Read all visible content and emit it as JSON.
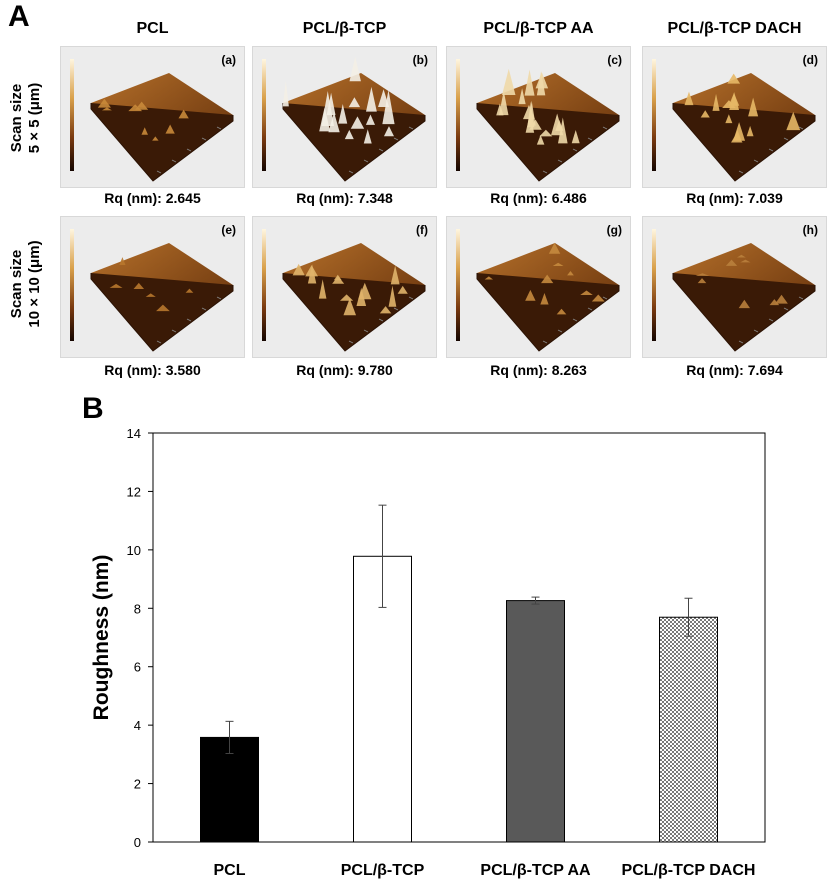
{
  "panel_a": {
    "letter": "A",
    "columns": [
      "PCL",
      "PCL/β-TCP",
      "PCL/β-TCP AA",
      "PCL/β-TCP DACH"
    ],
    "rows": [
      {
        "label_line1": "Scan size",
        "label_line2": "5 × 5 (μm)"
      },
      {
        "label_line1": "Scan size",
        "label_line2": "10 × 10 (μm)"
      }
    ],
    "tiles": [
      {
        "letter": "(a)",
        "rq": "Rq (nm): 2.645"
      },
      {
        "letter": "(b)",
        "rq": "Rq (nm): 7.348"
      },
      {
        "letter": "(c)",
        "rq": "Rq (nm): 6.486"
      },
      {
        "letter": "(d)",
        "rq": "Rq (nm): 7.039"
      },
      {
        "letter": "(e)",
        "rq": "Rq (nm): 3.580"
      },
      {
        "letter": "(f)",
        "rq": "Rq (nm): 9.780"
      },
      {
        "letter": "(g)",
        "rq": "Rq (nm): 8.263"
      },
      {
        "letter": "(h)",
        "rq": "Rq (nm): 7.694"
      }
    ]
  },
  "panel_b": {
    "letter": "B"
  },
  "chart_data": {
    "type": "bar",
    "title": "",
    "xlabel": "",
    "ylabel": "Roughness (nm)",
    "ylim": [
      0,
      14
    ],
    "yticks": [
      0,
      2,
      4,
      6,
      8,
      10,
      12,
      14
    ],
    "categories": [
      "PCL",
      "PCL/β-TCP",
      "PCL/β-TCP AA",
      "PCL/β-TCP DACH"
    ],
    "values": [
      3.58,
      9.78,
      8.263,
      7.694
    ],
    "errors": [
      0.55,
      1.75,
      0.12,
      0.65
    ],
    "fills": [
      "#000000",
      "#ffffff",
      "#595959",
      "pattern"
    ],
    "grid": false
  }
}
